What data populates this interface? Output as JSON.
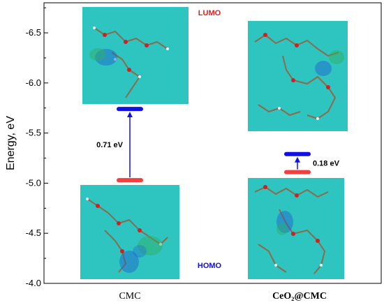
{
  "chart_data": {
    "type": "energy-level diagram",
    "ylabel": "Energy, eV",
    "ylim": [
      -6.8,
      -4.0
    ],
    "y_axis_inverted": true,
    "yticks": [
      -6.5,
      -6.0,
      -5.5,
      -5.0,
      -4.5,
      -4.0
    ],
    "ytick_labels": [
      "-6.5",
      "-6.0",
      "-5.5",
      "-5.0",
      "-4.5",
      "-4.0"
    ],
    "categories": [
      "CMC",
      "CeO₂@CMC"
    ],
    "series": [
      {
        "name": "LUMO",
        "color": "#1010e0",
        "values": [
          -5.74,
          -5.29
        ]
      },
      {
        "name": "HOMO",
        "color": "#f04040",
        "values": [
          -5.03,
          -5.11
        ]
      }
    ],
    "gaps": [
      "0.71 eV",
      "0.18 eV"
    ],
    "annotations": {
      "lumo": "LUMO",
      "homo": "HOMO"
    },
    "colors": {
      "panel": "#2ec4c0",
      "arrow": "#1010e0",
      "lumo": "#1010e0",
      "homo": "#f04040",
      "lumo_text": "#e02020",
      "homo_text": "#1010e0"
    }
  }
}
